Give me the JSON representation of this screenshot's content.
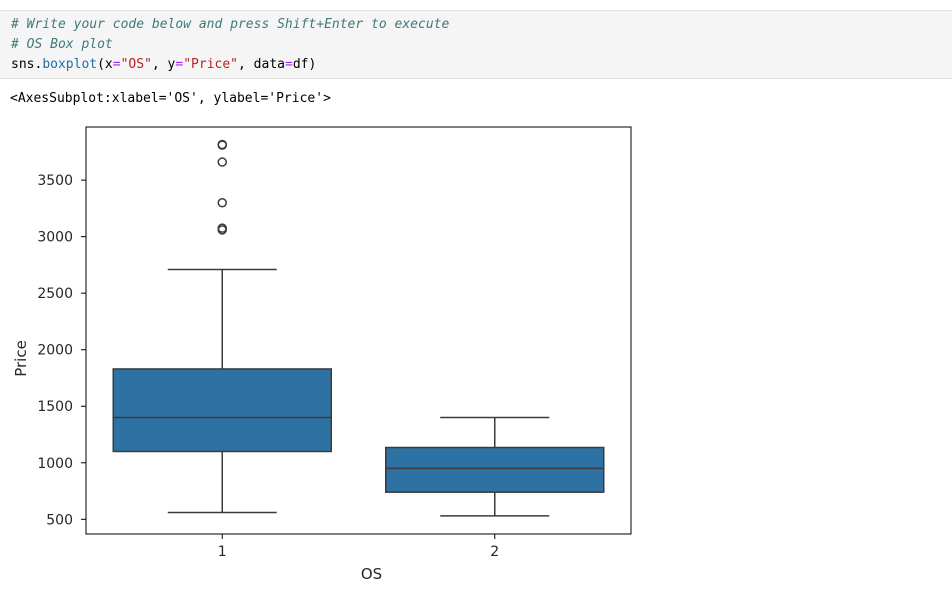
{
  "code_cell": {
    "comment_1": "# Write your code below and press Shift+Enter to execute",
    "comment_2": "# OS Box plot",
    "call": {
      "module": "sns.",
      "function": "boxplot",
      "open": "(x",
      "eq": "=",
      "x_value": "\"OS\"",
      "sep1": ", y",
      "y_value": "\"Price\"",
      "sep2": ", data",
      "data_value": "df)"
    }
  },
  "output": {
    "repr": "<AxesSubplot:xlabel='OS', ylabel='Price'>"
  },
  "chart_data": {
    "type": "box",
    "xlabel": "OS",
    "ylabel": "Price",
    "categories": [
      "1",
      "2"
    ],
    "yticks": [
      500,
      1000,
      1500,
      2000,
      2500,
      3000,
      3500
    ],
    "ylim": [
      370,
      3970
    ],
    "box_color": "#2e72a3",
    "edge_color": "#3b3b3b",
    "boxes": [
      {
        "category": "1",
        "whisker_low": 560,
        "q1": 1100,
        "median": 1400,
        "q3": 1830,
        "whisker_high": 2710,
        "outliers": [
          3060,
          3075,
          3300,
          3660,
          3810,
          3815
        ]
      },
      {
        "category": "2",
        "whisker_low": 530,
        "q1": 740,
        "median": 950,
        "q3": 1135,
        "whisker_high": 1400,
        "outliers": []
      }
    ]
  }
}
